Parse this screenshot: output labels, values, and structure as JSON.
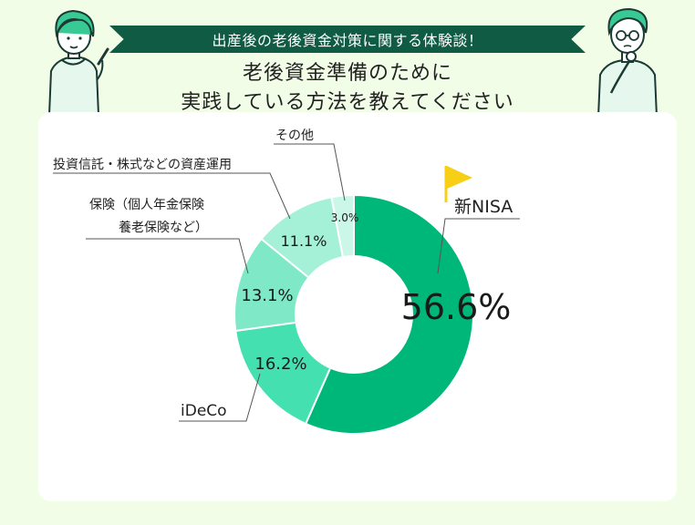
{
  "banner": "出産後の老後資金対策に関する体験談！",
  "title_line1": "老後資金準備のために",
  "title_line2": "実践している方法を教えてください",
  "colors": {
    "banner": "#0f5b44",
    "background": "#f1fde6",
    "card": "#ffffff",
    "slice_1": "#00b77a",
    "slice_2": "#45e0b0",
    "slice_3": "#7fe9c7",
    "slice_4": "#a5f1d8",
    "slice_5": "#cbf7e8",
    "flag": "#f6cf16"
  },
  "chart_data": {
    "type": "pie",
    "title": "",
    "categories": [
      "新NISA",
      "iDeCo",
      "保険（個人年金保険 養老保険など）",
      "投資信託・株式などの資産運用",
      "その他"
    ],
    "values": [
      56.6,
      16.2,
      13.1,
      11.1,
      3.0
    ],
    "value_labels": [
      "56.6%",
      "16.2%",
      "13.1%",
      "11.1%",
      "3.0%"
    ],
    "callouts": {
      "nisa": "新NISA",
      "ideco": "iDeCo",
      "hoken_line1": "保険（個人年金保険",
      "hoken_line2": "養老保険など）",
      "toushin": "投資信託・株式などの資産運用",
      "other": "その他"
    }
  }
}
